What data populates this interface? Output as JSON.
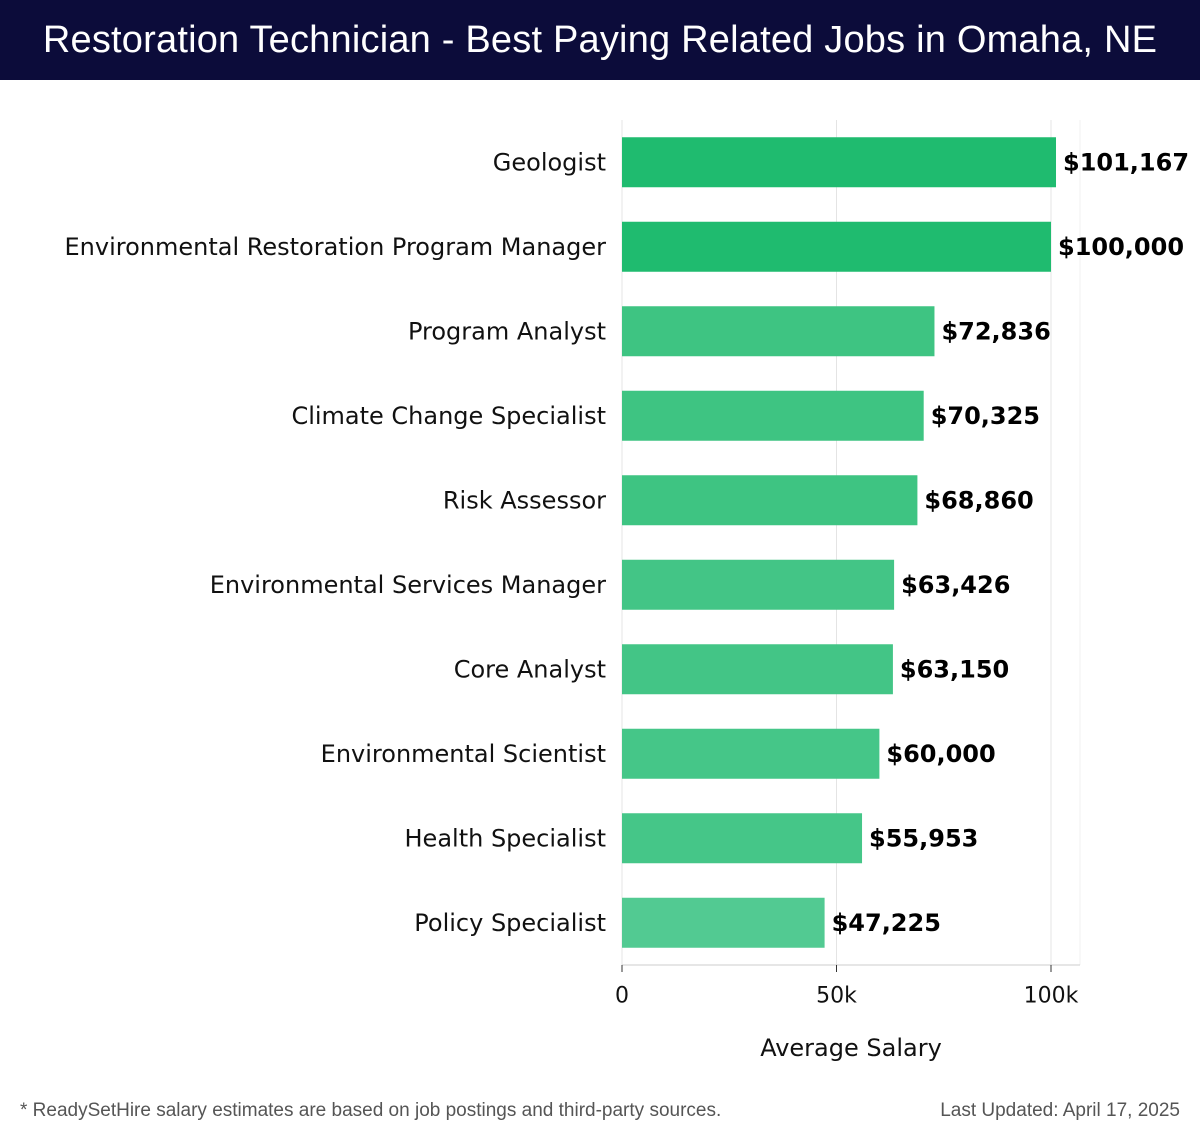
{
  "header": {
    "title": "Restoration Technician - Best Paying Related Jobs in Omaha, NE"
  },
  "chart_data": {
    "type": "bar",
    "orientation": "horizontal",
    "title": "Restoration Technician - Best Paying Related Jobs in Omaha, NE",
    "xlabel": "Average Salary",
    "ylabel": "",
    "xlim": [
      0,
      106000
    ],
    "xticks": [
      0,
      50000,
      100000
    ],
    "xtick_labels": [
      "0",
      "50k",
      "100k"
    ],
    "grid": true,
    "categories": [
      "Geologist",
      "Environmental Restoration Program Manager",
      "Program Analyst",
      "Climate Change Specialist",
      "Risk Assessor",
      "Environmental Services Manager",
      "Core Analyst",
      "Environmental Scientist",
      "Health Specialist",
      "Policy Specialist"
    ],
    "values": [
      101167,
      100000,
      72836,
      70325,
      68860,
      63426,
      63150,
      60000,
      55953,
      47225
    ],
    "value_labels": [
      "$101,167",
      "$100,000",
      "$72,836",
      "$70,325",
      "$68,860",
      "$63,426",
      "$63,150",
      "$60,000",
      "$55,953",
      "$47,225"
    ],
    "bar_colors": [
      "#1fbb6f",
      "#1fbb6f",
      "#3ec482",
      "#3ec482",
      "#3ec482",
      "#43c586",
      "#43c586",
      "#45c688",
      "#45c688",
      "#52ca92"
    ]
  },
  "footer": {
    "note": "* ReadySetHire salary estimates are based on job postings and third-party sources.",
    "updated": "Last Updated: April 17, 2025"
  }
}
